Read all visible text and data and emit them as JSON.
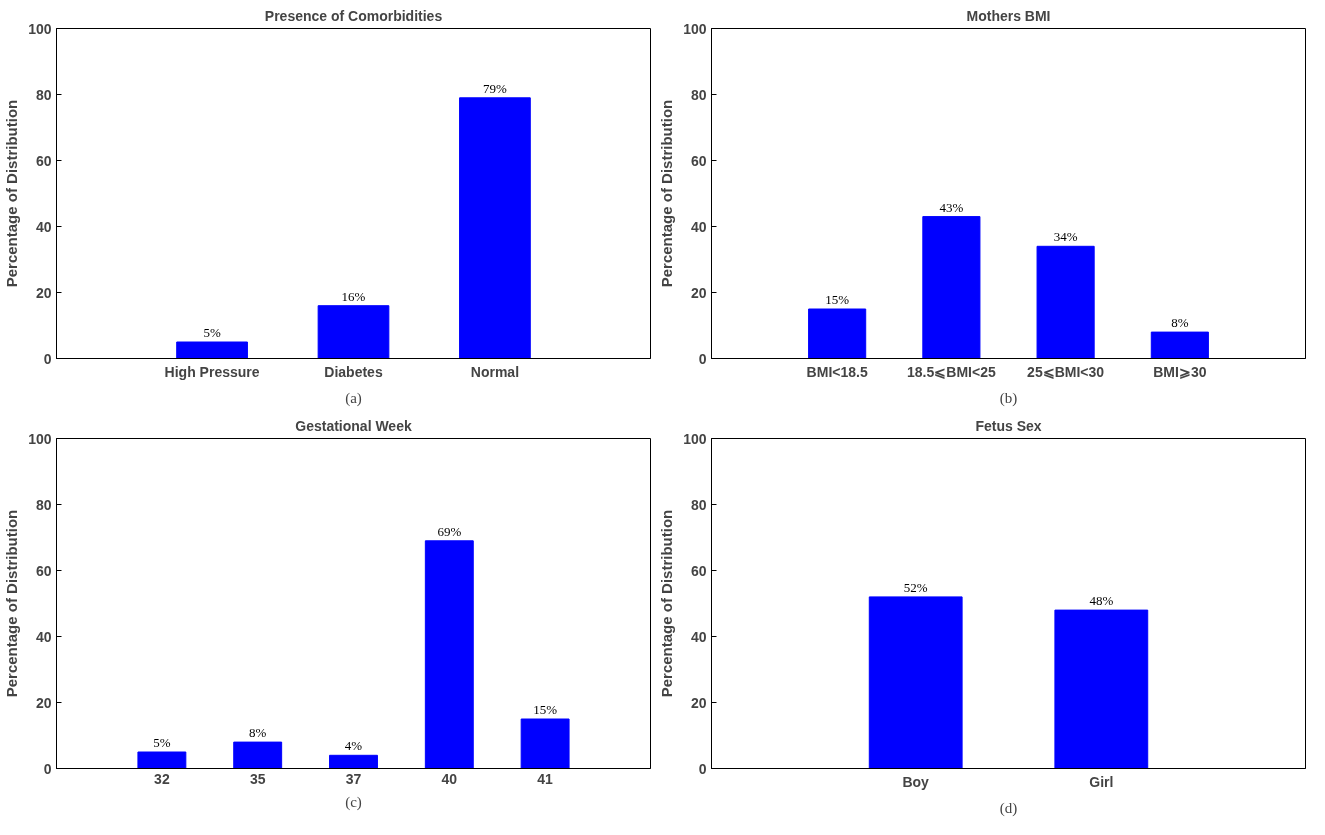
{
  "chart_data": [
    {
      "type": "bar",
      "title": "Presence of Comorbidities",
      "ylabel": "Percentage of Distribution",
      "categories": [
        "High Pressure",
        "Diabetes",
        "Normal"
      ],
      "values": [
        5,
        16,
        79
      ],
      "value_labels": [
        "5%",
        "16%",
        "79%"
      ],
      "color": "#0000ff",
      "ylim": [
        0,
        100
      ],
      "yticks": [
        0,
        20,
        40,
        60,
        80,
        100
      ],
      "grid": false,
      "annotations": [
        "(a)"
      ]
    },
    {
      "type": "bar",
      "title": "Mothers BMI",
      "ylabel": "Percentage of Distribution",
      "categories": [
        "BMI<18.5",
        "18.5⩽BMI<25",
        "25⩽BMI<30",
        "BMI⩾30"
      ],
      "values": [
        15,
        43,
        34,
        8
      ],
      "value_labels": [
        "15%",
        "43%",
        "34%",
        "8%"
      ],
      "color": "#0000ff",
      "ylim": [
        0,
        100
      ],
      "yticks": [
        0,
        20,
        40,
        60,
        80,
        100
      ],
      "grid": false,
      "annotations": [
        "(b)"
      ]
    },
    {
      "type": "bar",
      "title": "Gestational Week",
      "ylabel": "Percentage of Distribution",
      "categories": [
        "32",
        "35",
        "37",
        "40",
        "41"
      ],
      "values": [
        5,
        8,
        4,
        69,
        15
      ],
      "value_labels": [
        "5%",
        "8%",
        "4%",
        "69%",
        "15%"
      ],
      "color": "#0000ff",
      "ylim": [
        0,
        100
      ],
      "yticks": [
        0,
        20,
        40,
        60,
        80,
        100
      ],
      "grid": false,
      "annotations": [
        "(c)"
      ]
    },
    {
      "type": "bar",
      "title": "Fetus Sex",
      "ylabel": "Percentage of Distribution",
      "categories": [
        "Boy",
        "Girl"
      ],
      "values": [
        52,
        48
      ],
      "value_labels": [
        "52%",
        "48%"
      ],
      "color": "#0000ff",
      "ylim": [
        0,
        100
      ],
      "yticks": [
        0,
        20,
        40,
        60,
        80,
        100
      ],
      "grid": false,
      "annotations": [
        "(d)"
      ]
    }
  ]
}
